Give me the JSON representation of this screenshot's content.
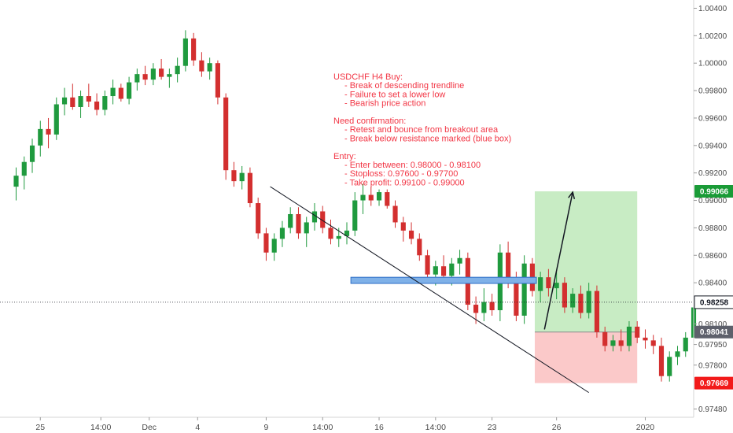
{
  "chart_data": {
    "type": "candlestick",
    "symbol": "USDCHF",
    "timeframe": "H4",
    "ylim": [
      0.9742,
      1.0046
    ],
    "y_ticks": [
      "1.00400",
      "1.00200",
      "1.00000",
      "0.99800",
      "0.99600",
      "0.99400",
      "0.99200",
      "0.99000",
      "0.98800",
      "0.98600",
      "0.98400",
      "0.98100",
      "0.97950",
      "0.97800",
      "0.97480"
    ],
    "y_tick_values": [
      1.004,
      1.002,
      1.0,
      0.998,
      0.996,
      0.994,
      0.992,
      0.99,
      0.988,
      0.986,
      0.984,
      0.981,
      0.9795,
      0.978,
      0.9748
    ],
    "x_ticks": [
      {
        "label": "25",
        "x": 3
      },
      {
        "label": "14:00",
        "x": 10.5
      },
      {
        "label": "Dec",
        "x": 16.5
      },
      {
        "label": "4",
        "x": 22.5
      },
      {
        "label": "9",
        "x": 31
      },
      {
        "label": "14:00",
        "x": 38
      },
      {
        "label": "16",
        "x": 45
      },
      {
        "label": "14:00",
        "x": 52
      },
      {
        "label": "23",
        "x": 59
      },
      {
        "label": "26",
        "x": 67
      },
      {
        "label": "2020",
        "x": 78
      }
    ],
    "x_range": [
      -2,
      84
    ],
    "candles": [
      [
        0.991,
        0.9924,
        0.99,
        0.9918
      ],
      [
        0.9918,
        0.9932,
        0.9908,
        0.9928
      ],
      [
        0.9928,
        0.9945,
        0.992,
        0.994
      ],
      [
        0.994,
        0.9958,
        0.9932,
        0.9952
      ],
      [
        0.9952,
        0.996,
        0.9938,
        0.9948
      ],
      [
        0.9948,
        0.9975,
        0.9944,
        0.997
      ],
      [
        0.997,
        0.9982,
        0.9962,
        0.9975
      ],
      [
        0.9975,
        0.9985,
        0.9966,
        0.9968
      ],
      [
        0.9968,
        0.998,
        0.996,
        0.9976
      ],
      [
        0.9976,
        0.9985,
        0.9968,
        0.9972
      ],
      [
        0.9972,
        0.9978,
        0.9962,
        0.9966
      ],
      [
        0.9966,
        0.998,
        0.9962,
        0.9976
      ],
      [
        0.9976,
        0.9988,
        0.997,
        0.9982
      ],
      [
        0.9982,
        0.9985,
        0.9972,
        0.9974
      ],
      [
        0.9974,
        0.999,
        0.997,
        0.9986
      ],
      [
        0.9986,
        0.9996,
        0.998,
        0.9992
      ],
      [
        0.9992,
        0.9998,
        0.9984,
        0.9988
      ],
      [
        0.9988,
        1.0,
        0.9984,
        0.9996
      ],
      [
        0.9996,
        1.0003,
        0.9988,
        0.999
      ],
      [
        0.999,
        0.9996,
        0.9982,
        0.9992
      ],
      [
        0.9992,
        1.0004,
        0.9986,
        0.9998
      ],
      [
        0.9998,
        1.0024,
        0.9994,
        1.0018
      ],
      [
        1.0018,
        1.0022,
        0.9998,
        1.0002
      ],
      [
        1.0002,
        1.0008,
        0.999,
        0.9994
      ],
      [
        0.9994,
        1.0004,
        0.9988,
        1.0
      ],
      [
        1.0,
        1.0002,
        0.997,
        0.9975
      ],
      [
        0.9975,
        0.9978,
        0.9915,
        0.9922
      ],
      [
        0.9922,
        0.9928,
        0.991,
        0.9914
      ],
      [
        0.9914,
        0.9925,
        0.9908,
        0.992
      ],
      [
        0.992,
        0.9924,
        0.9895,
        0.9898
      ],
      [
        0.9898,
        0.9902,
        0.9872,
        0.9876
      ],
      [
        0.9876,
        0.988,
        0.9856,
        0.9862
      ],
      [
        0.9862,
        0.9876,
        0.9856,
        0.9872
      ],
      [
        0.9872,
        0.9885,
        0.9866,
        0.988
      ],
      [
        0.988,
        0.9895,
        0.9876,
        0.989
      ],
      [
        0.989,
        0.9895,
        0.9872,
        0.9876
      ],
      [
        0.9876,
        0.9888,
        0.9866,
        0.9884
      ],
      [
        0.9884,
        0.9898,
        0.9878,
        0.9892
      ],
      [
        0.9892,
        0.9896,
        0.9876,
        0.988
      ],
      [
        0.988,
        0.9886,
        0.9868,
        0.9872
      ],
      [
        0.9872,
        0.988,
        0.9866,
        0.9874
      ],
      [
        0.9874,
        0.9884,
        0.9868,
        0.9878
      ],
      [
        0.9878,
        0.9906,
        0.9874,
        0.99
      ],
      [
        0.99,
        0.9912,
        0.989,
        0.9904
      ],
      [
        0.9904,
        0.991,
        0.9896,
        0.99
      ],
      [
        0.99,
        0.9908,
        0.9896,
        0.9906
      ],
      [
        0.9906,
        0.9908,
        0.9894,
        0.9896
      ],
      [
        0.9896,
        0.99,
        0.988,
        0.9884
      ],
      [
        0.9884,
        0.9888,
        0.987,
        0.9878
      ],
      [
        0.9878,
        0.9884,
        0.9868,
        0.9872
      ],
      [
        0.9872,
        0.9876,
        0.9856,
        0.986
      ],
      [
        0.986,
        0.9864,
        0.9842,
        0.9846
      ],
      [
        0.9846,
        0.9856,
        0.9838,
        0.9852
      ],
      [
        0.9852,
        0.986,
        0.9842,
        0.9845
      ],
      [
        0.9845,
        0.9858,
        0.9838,
        0.9854
      ],
      [
        0.9854,
        0.9864,
        0.9846,
        0.9858
      ],
      [
        0.9858,
        0.9862,
        0.982,
        0.9824
      ],
      [
        0.9824,
        0.983,
        0.981,
        0.9818
      ],
      [
        0.9818,
        0.9836,
        0.9812,
        0.9826
      ],
      [
        0.9826,
        0.9832,
        0.9816,
        0.982
      ],
      [
        0.982,
        0.9868,
        0.9812,
        0.9862
      ],
      [
        0.9862,
        0.987,
        0.9836,
        0.984
      ],
      [
        0.984,
        0.9848,
        0.9812,
        0.9816
      ],
      [
        0.9816,
        0.986,
        0.981,
        0.9854
      ],
      [
        0.9854,
        0.9858,
        0.983,
        0.9834
      ],
      [
        0.9834,
        0.9848,
        0.9826,
        0.9844
      ],
      [
        0.9844,
        0.985,
        0.983,
        0.9836
      ],
      [
        0.9836,
        0.9848,
        0.9828,
        0.984
      ],
      [
        0.984,
        0.9844,
        0.9818,
        0.9822
      ],
      [
        0.9822,
        0.9836,
        0.9818,
        0.9832
      ],
      [
        0.9832,
        0.9838,
        0.9814,
        0.9818
      ],
      [
        0.9818,
        0.984,
        0.9814,
        0.9834
      ],
      [
        0.9834,
        0.9838,
        0.98,
        0.9804
      ],
      [
        0.9804,
        0.9808,
        0.979,
        0.9794
      ],
      [
        0.9794,
        0.9802,
        0.979,
        0.9798
      ],
      [
        0.9798,
        0.9806,
        0.979,
        0.9794
      ],
      [
        0.9794,
        0.9812,
        0.979,
        0.9808
      ],
      [
        0.9808,
        0.9812,
        0.9796,
        0.98
      ],
      [
        0.98,
        0.9806,
        0.9792,
        0.9798
      ],
      [
        0.9798,
        0.9802,
        0.9788,
        0.9794
      ],
      [
        0.9794,
        0.98,
        0.9768,
        0.9772
      ],
      [
        0.9772,
        0.979,
        0.9768,
        0.9786
      ],
      [
        0.9786,
        0.9794,
        0.978,
        0.979
      ],
      [
        0.979,
        0.9804,
        0.9786,
        0.98
      ],
      [
        0.98,
        0.9826,
        0.9796,
        0.9822
      ]
    ],
    "trendline": {
      "from": [
        31.5,
        0.991
      ],
      "to": [
        71,
        0.976
      ]
    },
    "resistance_box": {
      "x": [
        41.5,
        64.5
      ],
      "y": [
        0.98395,
        0.9844
      ]
    },
    "entry_price": 0.98041,
    "target_price": 0.99066,
    "stop_price": 0.97669,
    "current_price": 0.98258,
    "position_x": [
      64.3,
      77.0
    ],
    "arrow": {
      "from": [
        65.5,
        0.9806
      ],
      "to": [
        69,
        0.9906
      ]
    },
    "price_labels": {
      "target": "0.99066",
      "current": "0.98258",
      "entry": "0.98041",
      "stop": "0.97669"
    },
    "colors": {
      "up": "#26a69a",
      "up_body": "#1f9a3e",
      "down": "#ef5350",
      "down_body": "#d32f2f",
      "profit_zone": "#c8ecc4",
      "loss_zone": "#fbc9c9",
      "resistance_fill": "#7fb1e8",
      "resistance_stroke": "#2e6fc7",
      "target_badge": "#1a9b37",
      "current_badge": "#131722",
      "entry_badge": "#5d606b",
      "stop_badge": "#f21a1a",
      "annotation": "#f23645"
    },
    "annotation_lines": [
      "USDCHF H4 Buy:",
      "    - Break of descending trendline",
      "    - Failure to set a lower low",
      "    - Bearish price action",
      "",
      "Need confirmation:",
      "    - Retest and bounce from breakout area",
      "    - Break below resistance marked (blue box)",
      "",
      "Entry:",
      "    - Enter between: 0.98000 - 0.98100",
      "    - Stoploss: 0.97600 - 0.97700",
      "    - Take profit: 0.99100 - 0.99000"
    ]
  }
}
